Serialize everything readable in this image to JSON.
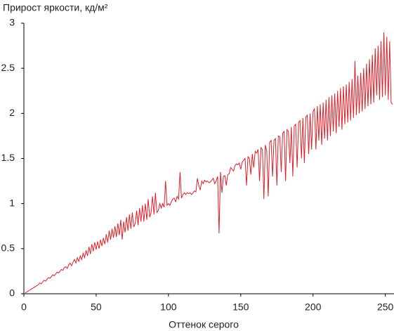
{
  "chart_data": {
    "type": "line",
    "title": "Прирост яркости, кд/м²",
    "x_label": "Оттенок серого",
    "xlim": [
      0,
      256
    ],
    "ylim": [
      0,
      3
    ],
    "xticks": [
      0,
      50,
      100,
      150,
      200,
      250
    ],
    "yticks": [
      0,
      0.5,
      1,
      1.5,
      2,
      2.5,
      3
    ],
    "x": [
      1,
      2,
      3,
      4,
      5,
      6,
      7,
      8,
      9,
      10,
      11,
      12,
      13,
      14,
      15,
      16,
      17,
      18,
      19,
      20,
      21,
      22,
      23,
      24,
      25,
      26,
      27,
      28,
      29,
      30,
      31,
      32,
      33,
      34,
      35,
      36,
      37,
      38,
      39,
      40,
      41,
      42,
      43,
      44,
      45,
      46,
      47,
      48,
      49,
      50,
      51,
      52,
      53,
      54,
      55,
      56,
      57,
      58,
      59,
      60,
      61,
      62,
      63,
      64,
      65,
      66,
      67,
      68,
      69,
      70,
      71,
      72,
      73,
      74,
      75,
      76,
      77,
      78,
      79,
      80,
      81,
      82,
      83,
      84,
      85,
      86,
      87,
      88,
      89,
      90,
      91,
      92,
      93,
      94,
      95,
      96,
      97,
      98,
      99,
      100,
      101,
      102,
      103,
      104,
      105,
      106,
      107,
      108,
      109,
      110,
      111,
      112,
      113,
      114,
      115,
      116,
      117,
      118,
      119,
      120,
      121,
      122,
      123,
      124,
      125,
      126,
      127,
      128,
      129,
      130,
      131,
      132,
      133,
      134,
      135,
      136,
      137,
      138,
      139,
      140,
      141,
      142,
      143,
      144,
      145,
      146,
      147,
      148,
      149,
      150,
      151,
      152,
      153,
      154,
      155,
      156,
      157,
      158,
      159,
      160,
      161,
      162,
      163,
      164,
      165,
      166,
      167,
      168,
      169,
      170,
      171,
      172,
      173,
      174,
      175,
      176,
      177,
      178,
      179,
      180,
      181,
      182,
      183,
      184,
      185,
      186,
      187,
      188,
      189,
      190,
      191,
      192,
      193,
      194,
      195,
      196,
      197,
      198,
      199,
      200,
      201,
      202,
      203,
      204,
      205,
      206,
      207,
      208,
      209,
      210,
      211,
      212,
      213,
      214,
      215,
      216,
      217,
      218,
      219,
      220,
      221,
      222,
      223,
      224,
      225,
      226,
      227,
      228,
      229,
      230,
      231,
      232,
      233,
      234,
      235,
      236,
      237,
      238,
      239,
      240,
      241,
      242,
      243,
      244,
      245,
      246,
      247,
      248,
      249,
      250,
      251,
      252,
      253,
      254,
      255
    ],
    "series": [
      {
        "color": "#e0202a",
        "values": [
          0.01,
          0.02,
          0.03,
          0.04,
          0.05,
          0.06,
          0.07,
          0.08,
          0.09,
          0.1,
          0.12,
          0.11,
          0.13,
          0.15,
          0.14,
          0.16,
          0.18,
          0.17,
          0.19,
          0.21,
          0.2,
          0.22,
          0.24,
          0.23,
          0.25,
          0.27,
          0.26,
          0.29,
          0.3,
          0.28,
          0.32,
          0.34,
          0.31,
          0.35,
          0.38,
          0.34,
          0.4,
          0.36,
          0.42,
          0.38,
          0.45,
          0.4,
          0.48,
          0.42,
          0.52,
          0.44,
          0.55,
          0.47,
          0.57,
          0.49,
          0.58,
          0.5,
          0.6,
          0.53,
          0.62,
          0.55,
          0.66,
          0.57,
          0.7,
          0.6,
          0.72,
          0.62,
          0.75,
          0.63,
          0.78,
          0.65,
          0.82,
          0.6,
          0.8,
          0.68,
          0.85,
          0.7,
          0.88,
          0.72,
          0.9,
          0.74,
          0.78,
          0.92,
          0.76,
          0.95,
          0.8,
          0.98,
          0.8,
          1.0,
          0.82,
          1.05,
          0.85,
          0.9,
          1.08,
          0.88,
          1.12,
          0.9,
          0.92,
          1.0,
          0.95,
          1.0,
          0.96,
          1.25,
          0.98,
          1.0,
          0.98,
          1.02,
          1.05,
          1.06,
          1.02,
          1.08,
          1.05,
          1.35,
          1.06,
          1.1,
          1.12,
          1.1,
          1.12,
          1.11,
          1.12,
          1.1,
          1.12,
          1.14,
          1.13,
          1.28,
          1.2,
          1.15,
          1.25,
          1.22,
          1.26,
          1.24,
          1.25,
          1.23,
          1.24,
          1.26,
          1.28,
          1.22,
          1.25,
          1.3,
          0.67,
          1.35,
          1.12,
          1.3,
          1.31,
          1.2,
          1.32,
          1.33,
          1.4,
          1.38,
          1.36,
          1.42,
          1.44,
          1.43,
          1.45,
          1.38,
          1.46,
          1.48,
          1.5,
          1.2,
          1.52,
          1.5,
          1.32,
          1.55,
          1.4,
          1.58,
          1.56,
          1.6,
          1.25,
          1.62,
          1.6,
          1.05,
          1.65,
          1.58,
          1.08,
          1.68,
          1.7,
          1.3,
          1.7,
          1.72,
          1.2,
          1.75,
          1.74,
          1.35,
          1.78,
          1.8,
          1.25,
          1.82,
          1.8,
          1.45,
          1.85,
          1.3,
          1.86,
          1.88,
          1.4,
          1.9,
          1.92,
          1.5,
          1.95,
          1.45,
          1.96,
          1.98,
          1.55,
          2.0,
          1.6,
          2.02,
          2.05,
          1.6,
          2.08,
          1.7,
          2.1,
          1.65,
          2.12,
          1.72,
          2.15,
          1.7,
          2.18,
          1.75,
          2.2,
          1.8,
          2.22,
          1.78,
          2.25,
          1.85,
          2.28,
          1.82,
          2.3,
          1.88,
          2.32,
          1.9,
          2.35,
          1.92,
          2.38,
          1.95,
          2.58,
          1.98,
          2.42,
          2.0,
          2.45,
          2.02,
          2.5,
          2.05,
          2.55,
          2.08,
          2.6,
          2.1,
          2.65,
          2.12,
          2.72,
          2.2,
          2.75,
          2.15,
          2.8,
          2.18,
          2.9,
          2.2,
          2.85,
          2.15,
          2.8,
          2.12,
          2.1
        ]
      }
    ]
  }
}
